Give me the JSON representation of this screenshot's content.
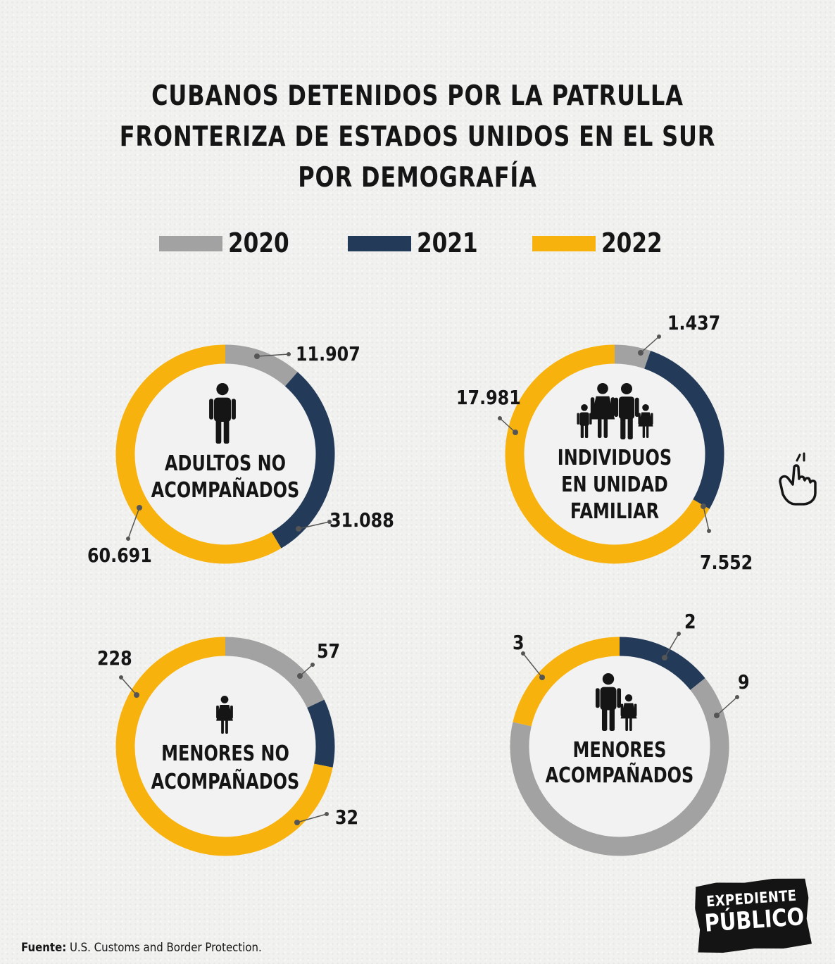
{
  "title": {
    "line1": "CUBANOS DETENIDOS POR LA PATRULLA",
    "line2": "FRONTERIZA DE ESTADOS UNIDOS EN EL SUR",
    "line3": "POR DEMOGRAFÍA"
  },
  "legend": [
    {
      "label": "2020",
      "color": "#a2a2a2"
    },
    {
      "label": "2021",
      "color": "#233a59"
    },
    {
      "label": "2022",
      "color": "#f8b20e"
    }
  ],
  "chart_data": [
    {
      "type": "pie",
      "title": "ADULTOS NO ACOMPAÑADOS",
      "labels": [
        "2020",
        "2021",
        "2022"
      ],
      "values": [
        11907,
        31088,
        60691
      ],
      "value_labels": [
        "11.907",
        "31.088",
        "60.691"
      ],
      "icon": "adult-person-icon"
    },
    {
      "type": "pie",
      "title": "INDIVIDUOS EN UNIDAD FAMILIAR",
      "labels": [
        "2020",
        "2021",
        "2022"
      ],
      "values": [
        1437,
        7552,
        17981
      ],
      "value_labels": [
        "1.437",
        "7.552",
        "17.981"
      ],
      "icon": "family-icon"
    },
    {
      "type": "pie",
      "title": "MENORES NO ACOMPAÑADOS",
      "labels": [
        "2020",
        "2021",
        "2022"
      ],
      "values": [
        57,
        32,
        228
      ],
      "value_labels": [
        "57",
        "32",
        "228"
      ],
      "icon": "child-icon"
    },
    {
      "type": "pie",
      "title": "MENORES ACOMPAÑADOS",
      "labels": [
        "2021",
        "2020",
        "2022"
      ],
      "values": [
        2,
        9,
        3
      ],
      "value_labels": [
        "2",
        "9",
        "3"
      ],
      "icon": "adult-with-child-icon"
    }
  ],
  "footer": {
    "label": "Fuente:",
    "text": " U.S. Customs and Border Protection."
  },
  "logo": {
    "line1": "EXPEDIENTE",
    "line2": "PÚBLICO"
  },
  "icons": {
    "interaction": "pointing-hand-icon"
  }
}
